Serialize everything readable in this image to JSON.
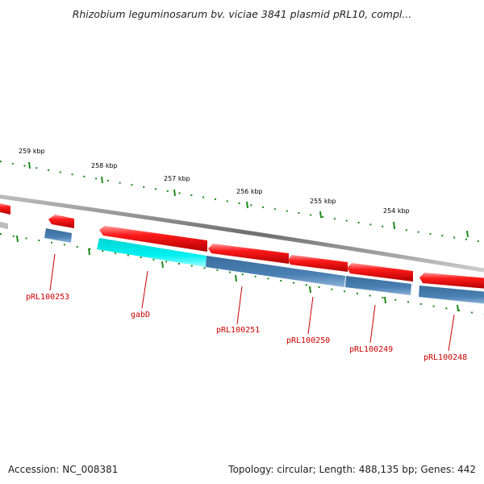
{
  "title": "Rhizobium leguminosarum bv. viciae 3841 plasmid pRL10, compl...",
  "footer": {
    "accession": "Accession: NC_008381",
    "topology": "Topology: circular; Length: 488,135 bp; Genes: 442"
  },
  "colors": {
    "backbone": "#7d7d7d",
    "forward_gene": "#e60000",
    "reverse_gene": "#3f74a6",
    "highlight_gene": "#00e5e5",
    "tick": "#1a8a1a",
    "label": "#cc0000"
  },
  "kbp_labels": [
    "259 kbp",
    "258 kbp",
    "257 kbp",
    "256 kbp",
    "255 kbp",
    "254 kbp"
  ],
  "gene_labels": [
    "pRL100253",
    "gabD",
    "pRL100251",
    "pRL100250",
    "pRL100249",
    "pRL100248"
  ]
}
